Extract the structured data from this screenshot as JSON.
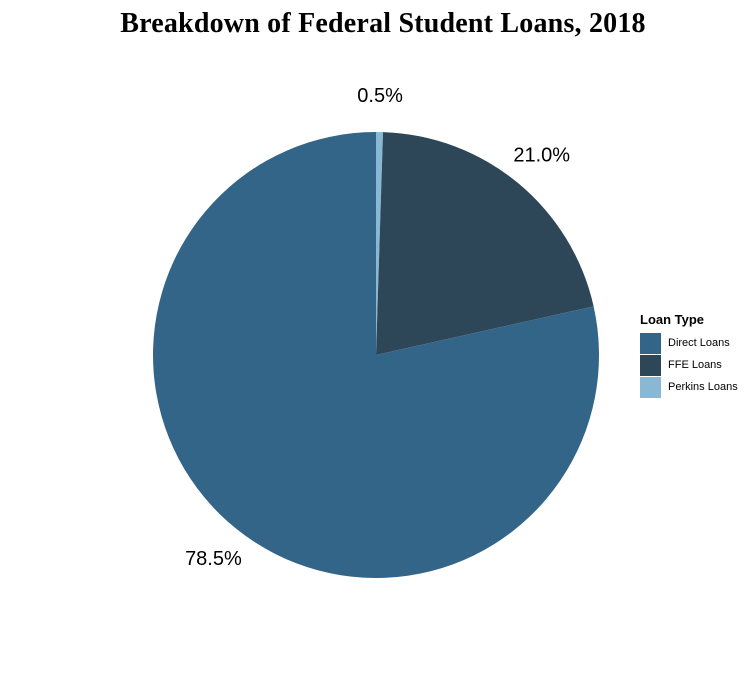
{
  "chart_data": {
    "type": "pie",
    "title": "Breakdown of Federal Student Loans, 2018",
    "legend_title": "Loan Type",
    "legend_position": "right",
    "slices": [
      {
        "name": "Direct Loans",
        "value": 78.5,
        "label": "78.5%",
        "color": "#336588"
      },
      {
        "name": "FFE Loans",
        "value": 21.0,
        "label": "21.0%",
        "color": "#2e4758"
      },
      {
        "name": "Perkins Loans",
        "value": 0.5,
        "label": "0.5%",
        "color": "#89b8d4"
      }
    ]
  }
}
